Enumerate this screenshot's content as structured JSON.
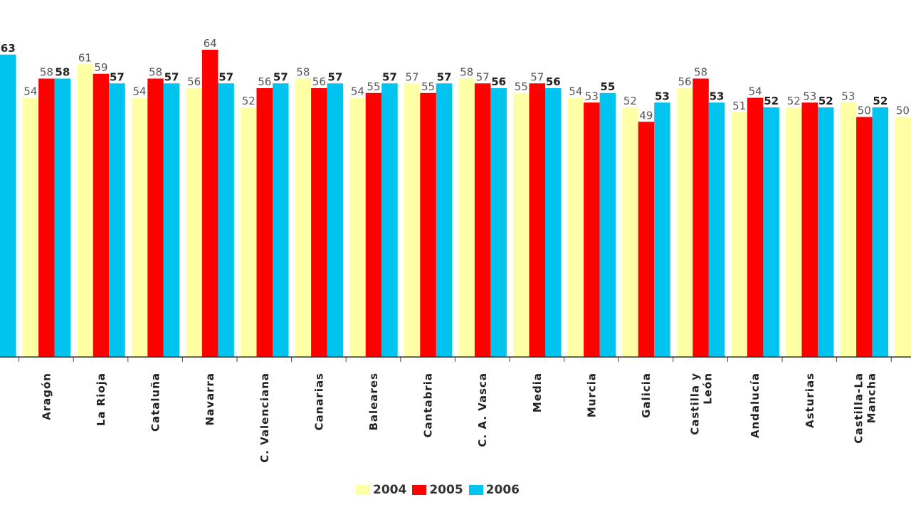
{
  "chart_data": {
    "type": "bar",
    "title": "",
    "xlabel": "",
    "ylabel": "",
    "ylim": [
      0,
      64
    ],
    "grid": false,
    "legend_position": "bottom",
    "categories": [
      "",
      "Aragón",
      "La Rioja",
      "Cataluña",
      "Navarra",
      "C. Valenciana",
      "Canarias",
      "Baleares",
      "Cantabria",
      "C. A. Vasca",
      "Media",
      "Murcia",
      "Galicia",
      "Castilla y León",
      "Andalucía",
      "Asturias",
      "Castilla-La Mancha",
      ""
    ],
    "series": [
      {
        "name": "2004",
        "color": "#ffffa6",
        "values": [
          null,
          54,
          61,
          54,
          56,
          52,
          58,
          54,
          57,
          58,
          55,
          54,
          52,
          56,
          51,
          52,
          53,
          50
        ]
      },
      {
        "name": "2005",
        "color": "#ff0000",
        "values": [
          null,
          58,
          59,
          58,
          64,
          56,
          56,
          55,
          55,
          57,
          57,
          53,
          49,
          58,
          54,
          53,
          50,
          null
        ]
      },
      {
        "name": "2006",
        "color": "#00c4f0",
        "values": [
          63,
          58,
          57,
          57,
          57,
          57,
          57,
          57,
          57,
          56,
          56,
          55,
          53,
          53,
          52,
          52,
          52,
          null
        ]
      }
    ]
  },
  "legend": {
    "items": [
      {
        "label": "2004",
        "color": "#ffffa6"
      },
      {
        "label": "2005",
        "color": "#ff0000"
      },
      {
        "label": "2006",
        "color": "#00c4f0"
      }
    ]
  }
}
